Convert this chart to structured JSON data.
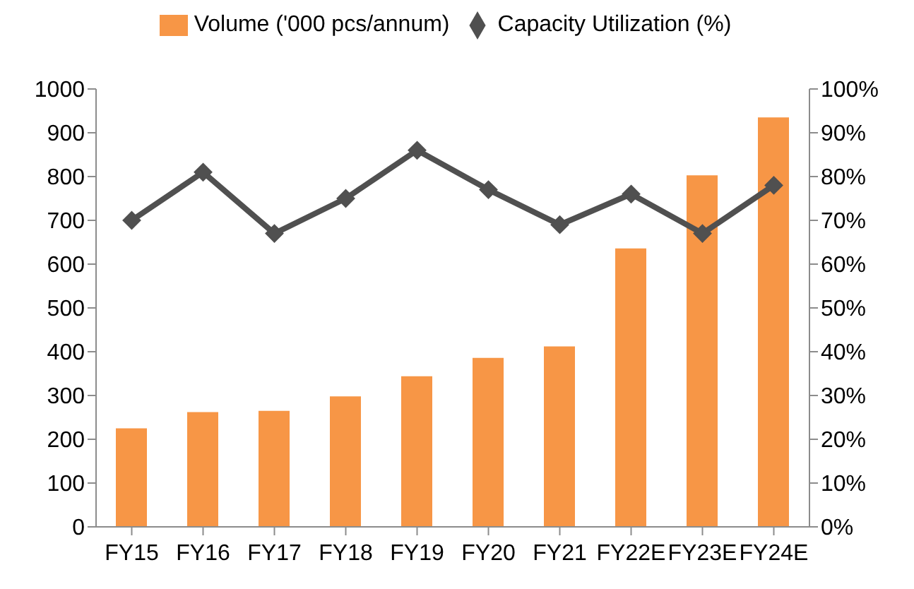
{
  "chart_data": {
    "type": "bar",
    "categories": [
      "FY15",
      "FY16",
      "FY17",
      "FY18",
      "FY19",
      "FY20",
      "FY21",
      "FY22E",
      "FY23E",
      "FY24E"
    ],
    "series": [
      {
        "name": "Volume ('000 pcs/annum)",
        "color": "#f79646",
        "values": [
          225,
          262,
          265,
          298,
          344,
          386,
          412,
          636,
          803,
          935
        ]
      },
      {
        "name": "Capacity Utilization (%)",
        "type": "line",
        "axis": "y2",
        "color": "#505050",
        "marker": "diamond",
        "values": [
          70,
          81,
          67,
          75,
          86,
          77,
          69,
          76,
          67,
          78
        ]
      }
    ],
    "ylim": [
      0,
      1000
    ],
    "yticks": [
      0,
      100,
      200,
      300,
      400,
      500,
      600,
      700,
      800,
      900,
      1000
    ],
    "y2lim": [
      0,
      100
    ],
    "y2ticks": [
      {
        "value": 0,
        "label": "0%"
      },
      {
        "value": 10,
        "label": "10%"
      },
      {
        "value": 20,
        "label": "20%"
      },
      {
        "value": 30,
        "label": "30%"
      },
      {
        "value": 40,
        "label": "40%"
      },
      {
        "value": 50,
        "label": "50%"
      },
      {
        "value": 60,
        "label": "60%"
      },
      {
        "value": 70,
        "label": "70%"
      },
      {
        "value": 80,
        "label": "80%"
      },
      {
        "value": 90,
        "label": "90%"
      },
      {
        "value": 100,
        "label": "100%"
      }
    ],
    "legend": "top",
    "grid": false
  }
}
